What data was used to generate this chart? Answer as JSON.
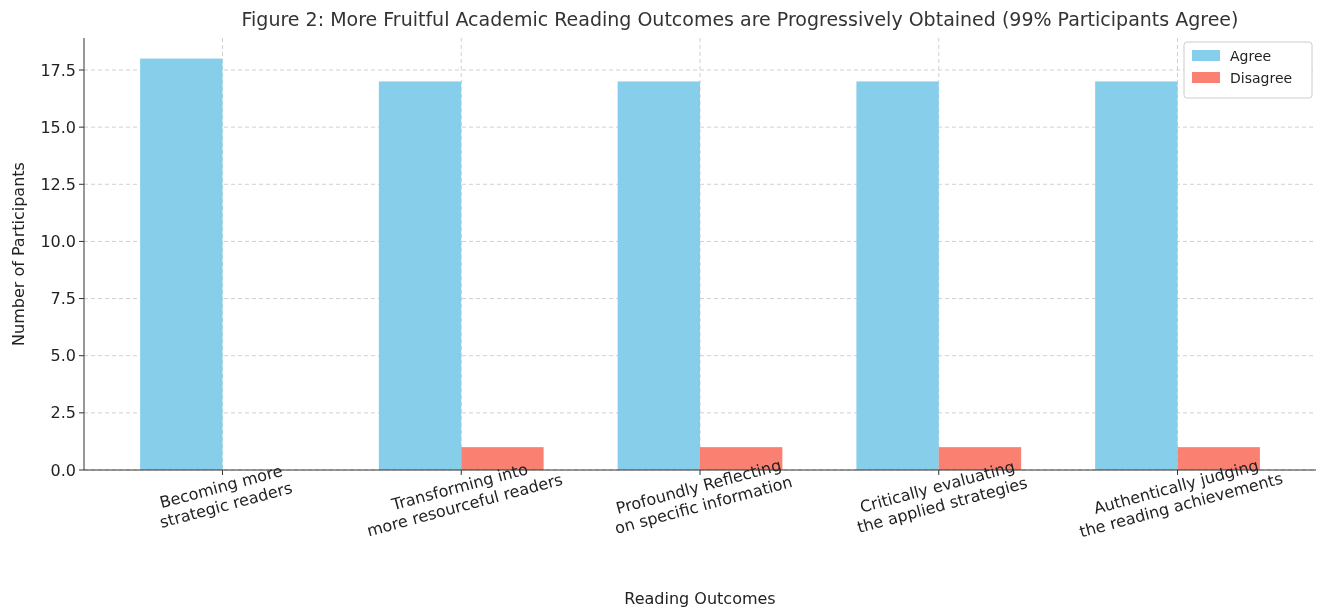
{
  "chart_data": {
    "type": "bar",
    "title": "Figure 2: More Fruitful Academic Reading Outcomes are Progressively Obtained (99% Participants Agree)",
    "xlabel": "Reading Outcomes",
    "ylabel": "Number of Participants",
    "categories": [
      "Becoming more\nstrategic readers",
      "Transforming into\nmore resourceful readers",
      "Profoundly Reflecting\non specific information",
      "Critically evaluating\nthe applied strategies",
      "Authentically judging\nthe reading achievements"
    ],
    "series": [
      {
        "name": "Agree",
        "color": "#87ceeb",
        "values": [
          18,
          17,
          17,
          17,
          17
        ]
      },
      {
        "name": "Disagree",
        "color": "#fa8072",
        "values": [
          0,
          1,
          1,
          1,
          1
        ]
      }
    ],
    "ylim": [
      0,
      18.9
    ],
    "yticks": [
      {
        "value": 0,
        "label": "0.0"
      },
      {
        "value": 2.5,
        "label": "2.5"
      },
      {
        "value": 5,
        "label": "5.0"
      },
      {
        "value": 7.5,
        "label": "7.5"
      },
      {
        "value": 10,
        "label": "10.0"
      },
      {
        "value": 12.5,
        "label": "12.5"
      },
      {
        "value": 15,
        "label": "15.0"
      },
      {
        "value": 17.5,
        "label": "17.5"
      }
    ],
    "grid": true,
    "legend": "top right"
  }
}
